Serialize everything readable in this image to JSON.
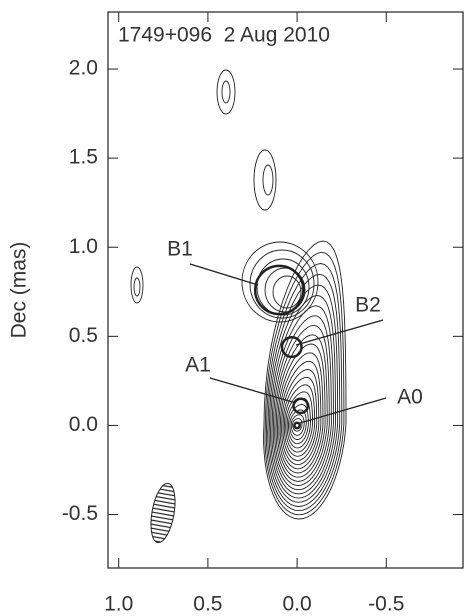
{
  "chart_data": {
    "type": "contour",
    "title": "1749+096  2 Aug 2010",
    "y_label": "Dec (mas)",
    "xlim": [
      1.06,
      -0.93
    ],
    "ylim": [
      -0.8,
      2.32
    ],
    "xticks": [
      {
        "value": 1,
        "label": "1.0"
      },
      0.5,
      {
        "value": 0,
        "label": "0.0"
      },
      -0.5
    ],
    "yticks": [
      {
        "value": 2,
        "label": "2.0"
      },
      1.5,
      {
        "value": 1,
        "label": "1.0"
      },
      0.5,
      {
        "value": 0,
        "label": "0.0"
      },
      -0.5
    ],
    "components": [
      {
        "name": "B1",
        "x": 0.1,
        "y": 0.76,
        "size": 0.27
      },
      {
        "name": "B2",
        "x": 0.03,
        "y": 0.44,
        "size": 0.11
      },
      {
        "name": "A1",
        "x": -0.02,
        "y": 0.11,
        "size": 0.08
      },
      {
        "name": "A0",
        "x": 0.0,
        "y": 0.0,
        "size": 0.03
      }
    ]
  }
}
